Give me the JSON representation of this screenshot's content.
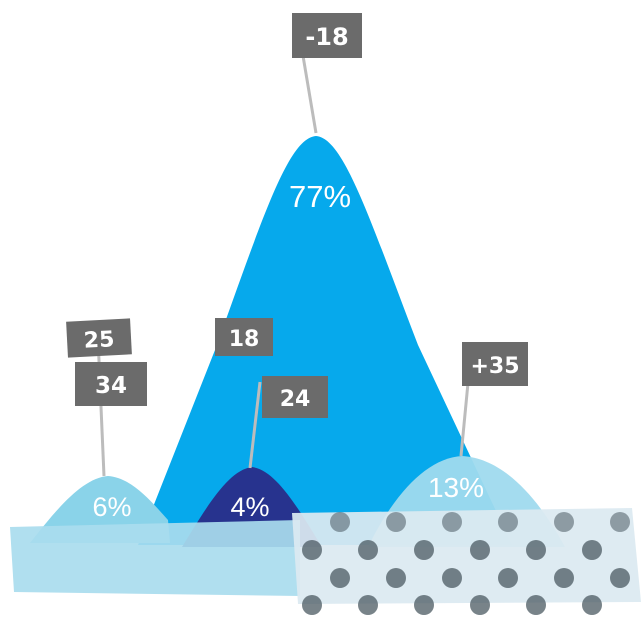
{
  "colors": {
    "light_mountain": "#8ad3e9",
    "main_mountain": "#06a9ec",
    "dark_mountain": "#27338e",
    "tape_blue": "#a9dcee",
    "tape_dots_bg": "#dbeaf1",
    "dot": "#4b5962",
    "flag": "#6b6b6b",
    "pole": "#bcbcbc"
  },
  "mountains": [
    {
      "id": "left",
      "percent": "6%",
      "flags": [
        "25",
        "34"
      ]
    },
    {
      "id": "center",
      "percent": "77%",
      "flags": [
        "-18"
      ]
    },
    {
      "id": "small-dark",
      "percent": "4%",
      "flags": [
        "18",
        "24"
      ]
    },
    {
      "id": "right",
      "percent": "13%",
      "flags": [
        "+35"
      ]
    }
  ]
}
